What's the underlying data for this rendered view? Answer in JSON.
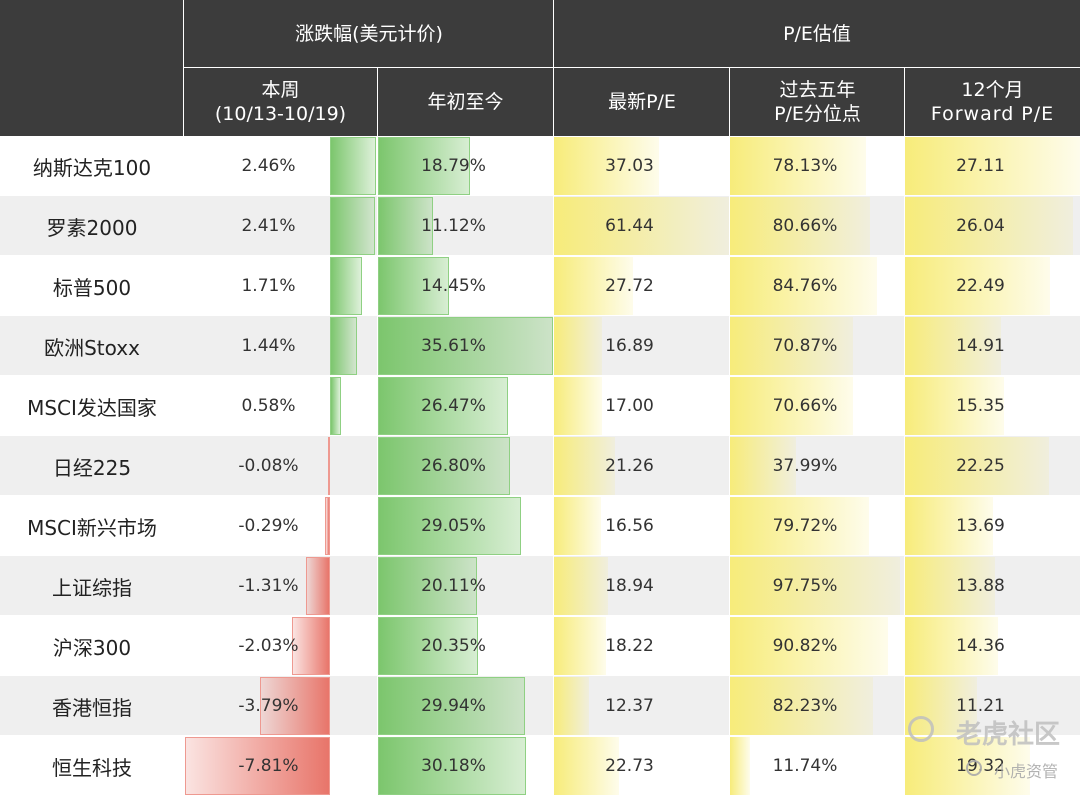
{
  "header": {
    "group_change": "涨跌幅(美元计价)",
    "group_pe": "P/E估值",
    "col_week_line1": "本周",
    "col_week_line2": "(10/13-10/19)",
    "col_ytd": "年初至今",
    "col_pe": "最新P/E",
    "col_pct_line1": "过去五年",
    "col_pct_line2": "P/E分位点",
    "col_fwd_line1": "12个月",
    "col_fwd_line2": "Forward P/E"
  },
  "colors": {
    "header_bg": "#3c3c3c",
    "row_alt_bg": "#efefef",
    "positive_bar": "#7cc66d",
    "negative_bar": "#e8756a",
    "pe_bar": "#f7ec7a"
  },
  "chart_data": {
    "type": "table",
    "columns": [
      "本周(10/13-10/19)",
      "年初至今",
      "最新P/E",
      "过去五年P/E分位点",
      "12个月Forward P/E"
    ],
    "rows": [
      {
        "name": "纳斯达克100",
        "week": 2.46,
        "ytd": 18.79,
        "pe": 37.03,
        "pct": 78.13,
        "fwd": 27.11
      },
      {
        "name": "罗素2000",
        "week": 2.41,
        "ytd": 11.12,
        "pe": 61.44,
        "pct": 80.66,
        "fwd": 26.04
      },
      {
        "name": "标普500",
        "week": 1.71,
        "ytd": 14.45,
        "pe": 27.72,
        "pct": 84.76,
        "fwd": 22.49
      },
      {
        "name": "欧洲Stoxx",
        "week": 1.44,
        "ytd": 35.61,
        "pe": 16.89,
        "pct": 70.87,
        "fwd": 14.91
      },
      {
        "name": "MSCI发达国家",
        "week": 0.58,
        "ytd": 26.47,
        "pe": 17.0,
        "pct": 70.66,
        "fwd": 15.35
      },
      {
        "name": "日经225",
        "week": -0.08,
        "ytd": 26.8,
        "pe": 21.26,
        "pct": 37.99,
        "fwd": 22.25
      },
      {
        "name": "MSCI新兴市场",
        "week": -0.29,
        "ytd": 29.05,
        "pe": 16.56,
        "pct": 79.72,
        "fwd": 13.69
      },
      {
        "name": "上证综指",
        "week": -1.31,
        "ytd": 20.11,
        "pe": 18.94,
        "pct": 97.75,
        "fwd": 13.88
      },
      {
        "name": "沪深300",
        "week": -2.03,
        "ytd": 20.35,
        "pe": 18.22,
        "pct": 90.82,
        "fwd": 14.36
      },
      {
        "name": "香港恒指",
        "week": -3.79,
        "ytd": 29.94,
        "pe": 12.37,
        "pct": 82.23,
        "fwd": 11.21
      },
      {
        "name": "恒生科技",
        "week": -7.81,
        "ytd": 30.18,
        "pe": 22.73,
        "pct": 11.74,
        "fwd": 19.32
      }
    ],
    "value_suffix": {
      "week": "%",
      "ytd": "%",
      "pe": "",
      "pct": "%",
      "fwd": ""
    }
  },
  "watermark": {
    "brand": "老虎社区",
    "sub": "小虎资管"
  }
}
